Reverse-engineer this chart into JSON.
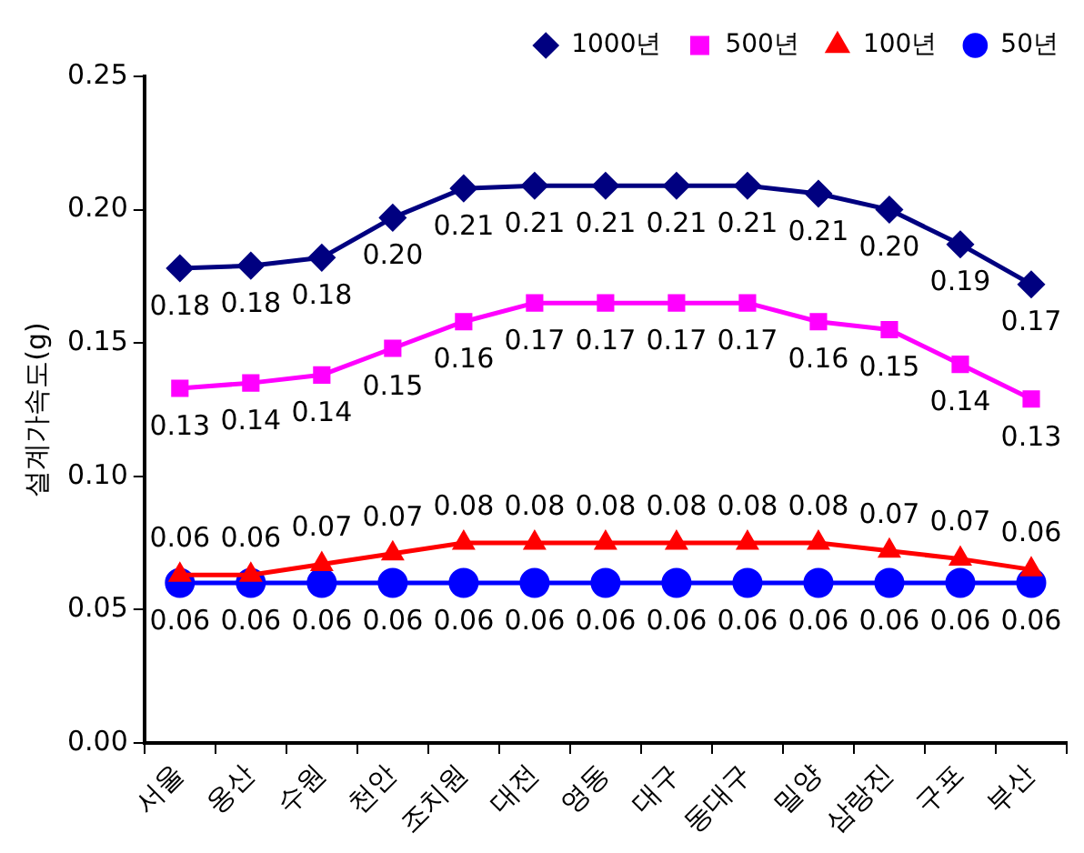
{
  "chart_data": {
    "type": "line",
    "ylabel": "설계가속도(g)",
    "categories": [
      "서울",
      "옹산",
      "수원",
      "천안",
      "조치원",
      "대전",
      "영동",
      "대구",
      "동대구",
      "밀양",
      "삼랑진",
      "구포",
      "부산"
    ],
    "ylim": [
      0,
      0.25
    ],
    "yticks": [
      {
        "value": 0,
        "label": "0.00"
      },
      {
        "value": 0.05,
        "label": "0.05"
      },
      {
        "value": 0.1,
        "label": "0.10"
      },
      {
        "value": 0.15,
        "label": "0.15"
      },
      {
        "value": 0.2,
        "label": "0.20"
      },
      {
        "value": 0.25,
        "label": "0.25"
      }
    ],
    "grid": false,
    "legend": "top right",
    "line_style": "solid",
    "series": [
      {
        "name": "1000년",
        "color": "#000080",
        "marker": "diamond",
        "values": [
          0.178,
          0.179,
          0.182,
          0.197,
          0.208,
          0.209,
          0.209,
          0.209,
          0.209,
          0.206,
          0.2,
          0.187,
          0.172
        ],
        "value_labels": [
          "0.18",
          "0.18",
          "0.18",
          "0.20",
          "0.21",
          "0.21",
          "0.21",
          "0.21",
          "0.21",
          "0.21",
          "0.20",
          "0.19",
          "0.17"
        ]
      },
      {
        "name": "500년",
        "color": "#ff00ff",
        "marker": "square",
        "values": [
          0.133,
          0.135,
          0.138,
          0.148,
          0.158,
          0.165,
          0.165,
          0.165,
          0.165,
          0.158,
          0.155,
          0.142,
          0.129
        ],
        "value_labels": [
          "0.13",
          "0.14",
          "0.14",
          "0.15",
          "0.16",
          "0.17",
          "0.17",
          "0.17",
          "0.17",
          "0.16",
          "0.15",
          "0.14",
          "0.13"
        ]
      },
      {
        "name": "100년",
        "color": "#ff0000",
        "marker": "triangle",
        "values": [
          0.063,
          0.063,
          0.067,
          0.071,
          0.075,
          0.075,
          0.075,
          0.075,
          0.075,
          0.075,
          0.072,
          0.069,
          0.065
        ],
        "value_labels": [
          "0.06",
          "0.06",
          "0.07",
          "0.07",
          "0.08",
          "0.08",
          "0.08",
          "0.08",
          "0.08",
          "0.08",
          "0.07",
          "0.07",
          "0.06"
        ]
      },
      {
        "name": "50년",
        "color": "#0000ff",
        "marker": "circle",
        "values": [
          0.06,
          0.06,
          0.06,
          0.06,
          0.06,
          0.06,
          0.06,
          0.06,
          0.06,
          0.06,
          0.06,
          0.06,
          0.06
        ],
        "value_labels": [
          "0.06",
          "0.06",
          "0.06",
          "0.06",
          "0.06",
          "0.06",
          "0.06",
          "0.06",
          "0.06",
          "0.06",
          "0.06",
          "0.06",
          "0.06"
        ]
      }
    ]
  }
}
